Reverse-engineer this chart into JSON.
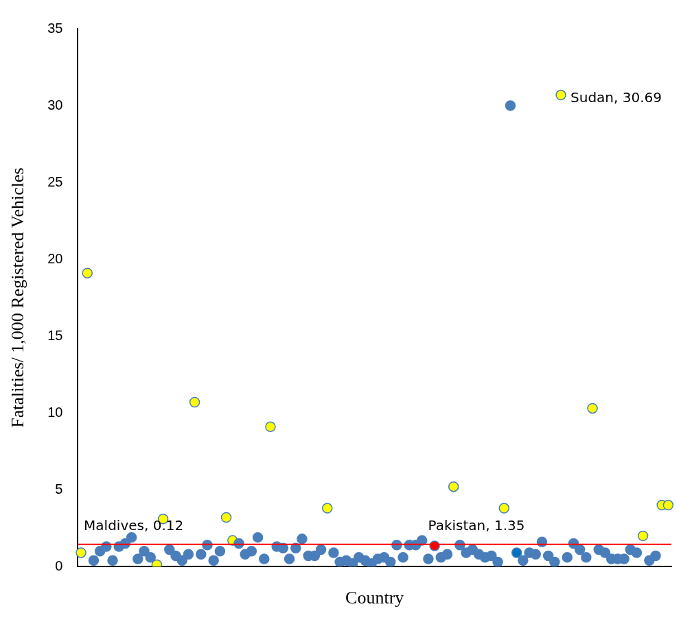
{
  "chart_data": {
    "type": "scatter",
    "xlabel": "Country",
    "ylabel": "Fatalities/ 1,000 Registered Vehicles",
    "categories": [
      null,
      null,
      null,
      null,
      null,
      null,
      null,
      null,
      null,
      null,
      null,
      null,
      null,
      null,
      null,
      null,
      null,
      null,
      null,
      null,
      null,
      null,
      null,
      null,
      null,
      null,
      null,
      null,
      null,
      null,
      null,
      null,
      null,
      null,
      null,
      null,
      null,
      null,
      null,
      null,
      null,
      null,
      null,
      null,
      null,
      null,
      null,
      null,
      null,
      null,
      null,
      null,
      null,
      null,
      null,
      null,
      null,
      null,
      null,
      null,
      null,
      null,
      null,
      null,
      null,
      null,
      null,
      null,
      null,
      null,
      null,
      null,
      null,
      null,
      null,
      null,
      null,
      null,
      null,
      null,
      null,
      null,
      null,
      null,
      null,
      null,
      null,
      null,
      null,
      null,
      null,
      null,
      null,
      null
    ],
    "values": [
      0.9,
      19.1,
      0.4,
      1.0,
      1.3,
      0.4,
      1.3,
      1.5,
      1.9,
      0.5,
      1.0,
      0.6,
      0.12,
      3.1,
      1.1,
      0.7,
      0.4,
      0.8,
      10.7,
      0.8,
      1.4,
      0.4,
      1.0,
      3.2,
      1.7,
      1.5,
      0.8,
      1.0,
      1.9,
      0.5,
      9.1,
      1.3,
      1.2,
      0.5,
      1.2,
      1.8,
      0.7,
      0.7,
      1.1,
      3.8,
      0.9,
      0.3,
      0.4,
      0.2,
      0.6,
      0.4,
      0.2,
      0.5,
      0.6,
      0.3,
      1.4,
      0.6,
      1.4,
      1.4,
      1.7,
      0.5,
      1.35,
      0.6,
      0.8,
      5.2,
      1.4,
      0.9,
      1.1,
      0.8,
      0.6,
      0.7,
      0.3,
      3.8,
      30.0,
      0.9,
      0.4,
      0.9,
      0.8,
      1.6,
      0.7,
      0.3,
      30.69,
      0.6,
      1.5,
      1.1,
      0.6,
      10.3,
      1.1,
      0.9,
      0.5,
      0.5,
      0.5,
      1.1,
      0.9,
      2.0,
      0.4,
      0.7,
      4.0,
      4.0
    ],
    "colors": [
      "#ffff00",
      "#ffff00",
      "#4a7ebb",
      "#4a7ebb",
      "#4a7ebb",
      "#4a7ebb",
      "#4a7ebb",
      "#4a7ebb",
      "#4a7ebb",
      "#4a7ebb",
      "#4a7ebb",
      "#4a7ebb",
      "#ffff00",
      "#ffff00",
      "#4a7ebb",
      "#4a7ebb",
      "#4a7ebb",
      "#4a7ebb",
      "#ffff00",
      "#4a7ebb",
      "#4a7ebb",
      "#4a7ebb",
      "#4a7ebb",
      "#ffff00",
      "#ffff00",
      "#4a7ebb",
      "#4a7ebb",
      "#4a7ebb",
      "#4a7ebb",
      "#4a7ebb",
      "#ffff00",
      "#4a7ebb",
      "#4a7ebb",
      "#4a7ebb",
      "#4a7ebb",
      "#4a7ebb",
      "#4a7ebb",
      "#4a7ebb",
      "#4a7ebb",
      "#ffff00",
      "#4a7ebb",
      "#4a7ebb",
      "#4a7ebb",
      "#4a7ebb",
      "#4a7ebb",
      "#4a7ebb",
      "#4a7ebb",
      "#4a7ebb",
      "#4a7ebb",
      "#4a7ebb",
      "#4a7ebb",
      "#4a7ebb",
      "#4a7ebb",
      "#4a7ebb",
      "#4a7ebb",
      "#4a7ebb",
      "#ff0000",
      "#4a7ebb",
      "#4a7ebb",
      "#ffff00",
      "#4a7ebb",
      "#4a7ebb",
      "#4a7ebb",
      "#4a7ebb",
      "#4a7ebb",
      "#4a7ebb",
      "#4a7ebb",
      "#ffff00",
      "#4a7ebb",
      "#0070c0",
      "#4a7ebb",
      "#4a7ebb",
      "#4a7ebb",
      "#4a7ebb",
      "#4a7ebb",
      "#4a7ebb",
      "#ffff00",
      "#4a7ebb",
      "#4a7ebb",
      "#4a7ebb",
      "#4a7ebb",
      "#ffff00",
      "#4a7ebb",
      "#4a7ebb",
      "#4a7ebb",
      "#4a7ebb",
      "#4a7ebb",
      "#4a7ebb",
      "#4a7ebb",
      "#ffff00",
      "#4a7ebb",
      "#4a7ebb",
      "#ffff00",
      "#ffff00"
    ],
    "ylim": [
      0,
      35
    ],
    "yticks": [
      0,
      5,
      10,
      15,
      20,
      25,
      30,
      35
    ],
    "grid": false,
    "marker": "circle",
    "ref_lines": [
      {
        "axis": "y",
        "value": 1.45,
        "color": "#ff0000"
      }
    ],
    "annotations": [
      "Maldives, 0.12",
      "Pakistan, 1.35",
      "Sudan, 30.69"
    ]
  }
}
